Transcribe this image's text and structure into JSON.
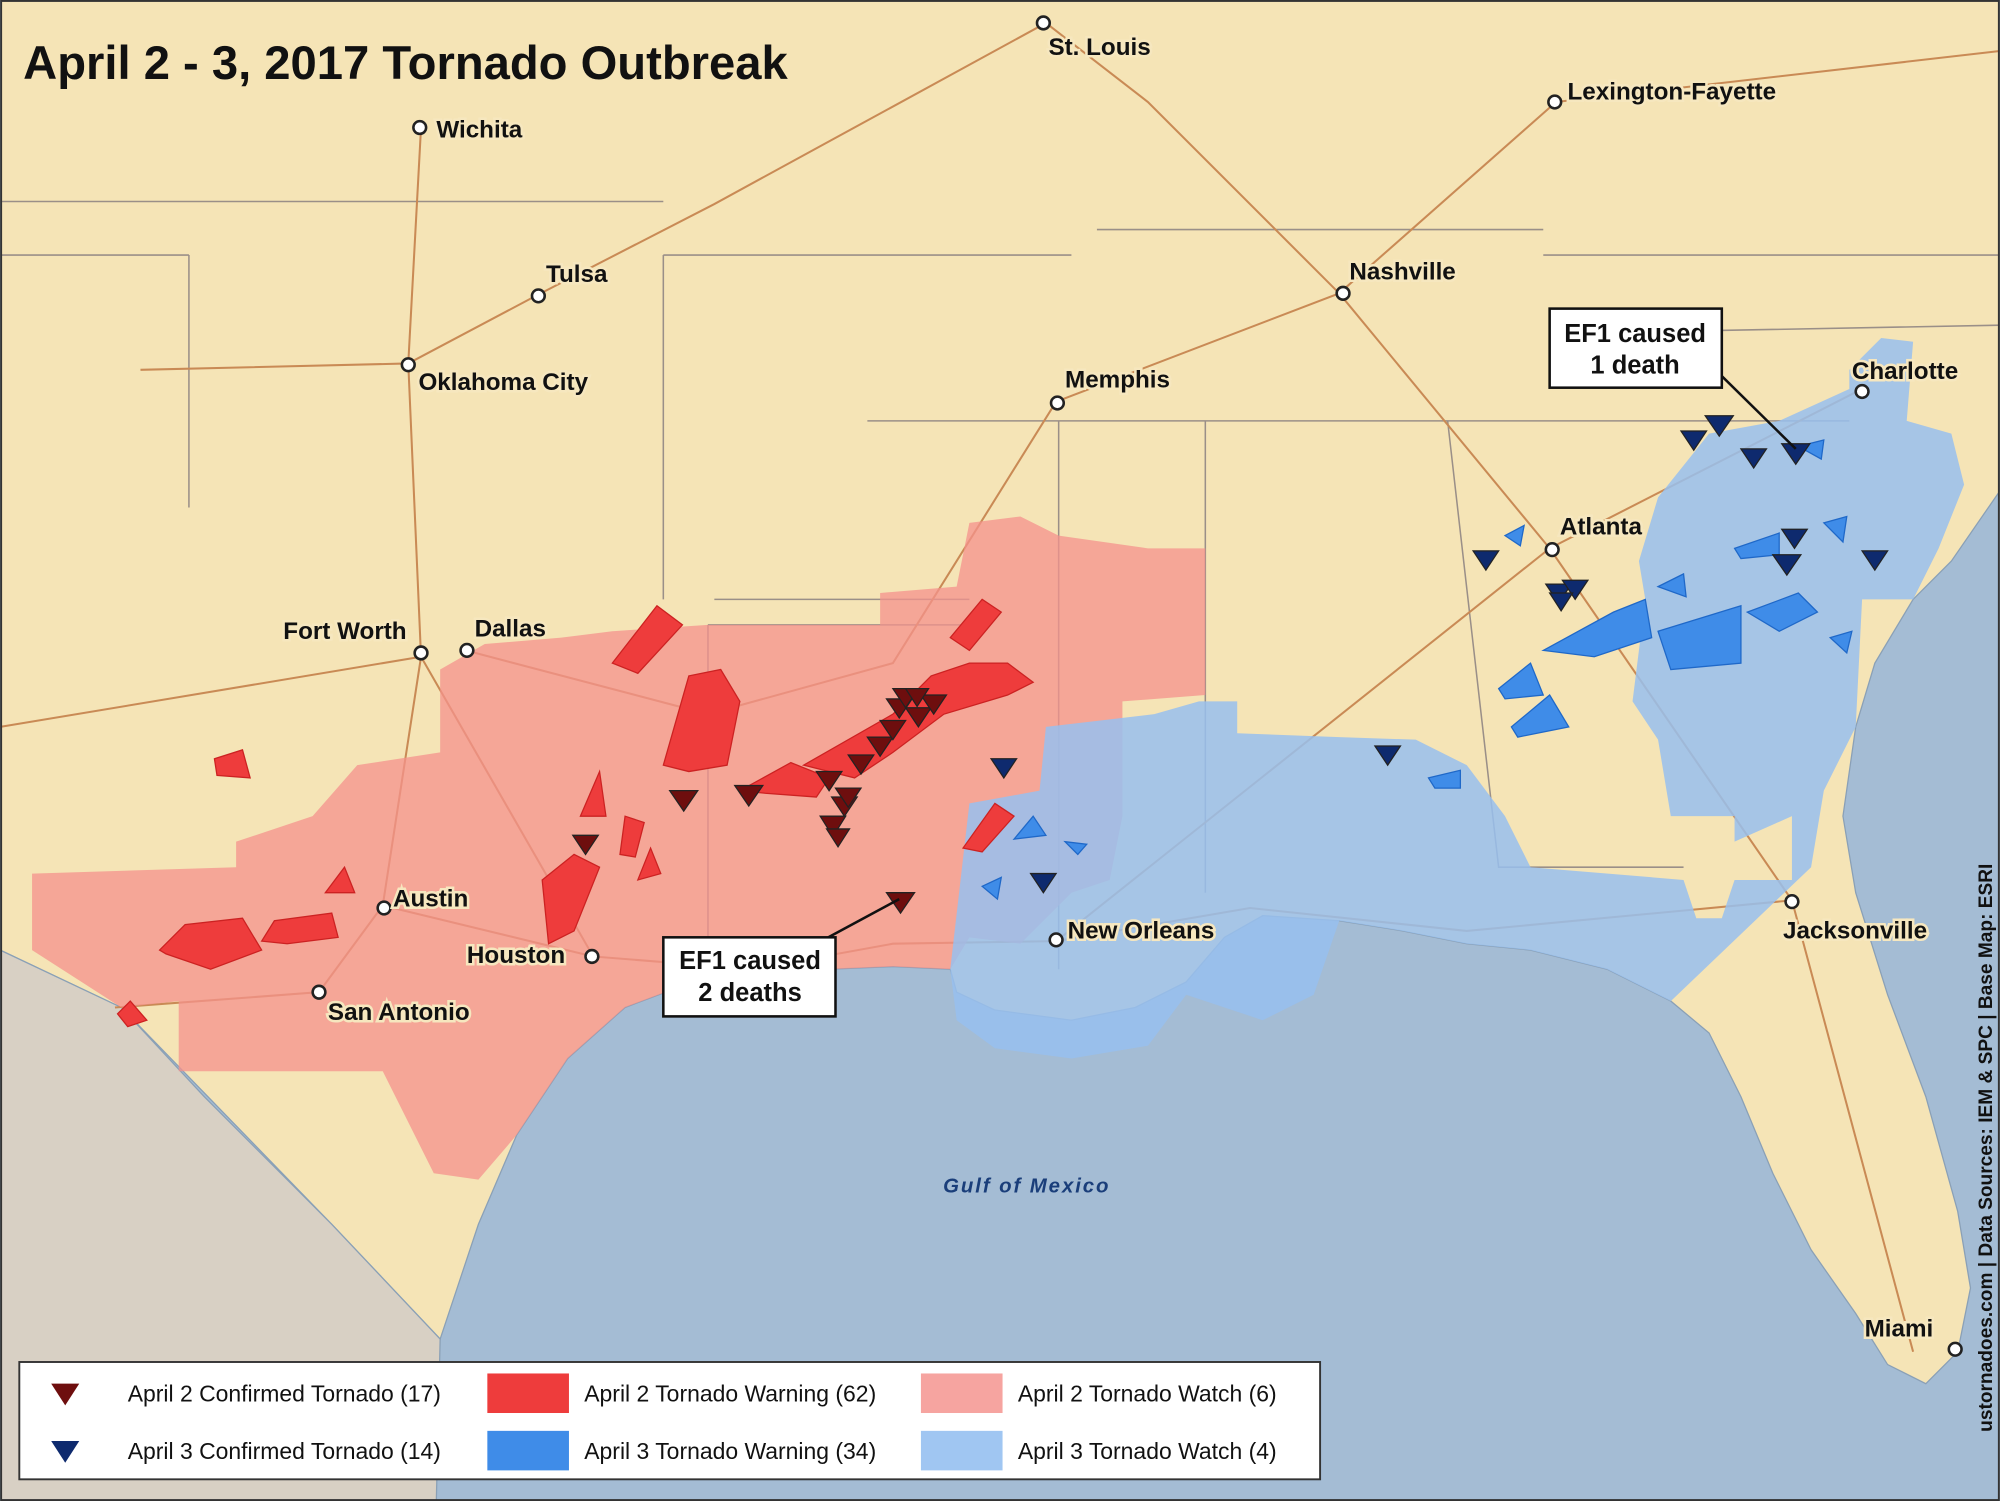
{
  "title": "April 2 - 3, 2017 Tornado Outbreak",
  "cities": [
    {
      "name": "St. Louis"
    },
    {
      "name": "Lexington-Fayette"
    },
    {
      "name": "Wichita"
    },
    {
      "name": "Tulsa"
    },
    {
      "name": "Nashville"
    },
    {
      "name": "Oklahoma City"
    },
    {
      "name": "Memphis"
    },
    {
      "name": "Charlotte"
    },
    {
      "name": "Atlanta"
    },
    {
      "name": "Fort Worth"
    },
    {
      "name": "Dallas"
    },
    {
      "name": "Austin"
    },
    {
      "name": "Houston"
    },
    {
      "name": "San Antonio"
    },
    {
      "name": "New Orleans"
    },
    {
      "name": "Jacksonville"
    },
    {
      "name": "Miami"
    }
  ],
  "annotations": [
    {
      "lines": [
        "EF1 caused",
        "1 death"
      ]
    },
    {
      "lines": [
        "EF1 caused",
        "2 deaths"
      ]
    }
  ],
  "water_label": "Gulf of Mexico",
  "credit": "ustornadoes.com | Data Sources: IEM & SPC | Base Map: ESRI",
  "legend": {
    "items": [
      "April 2 Confirmed Tornado (17)",
      "April 2 Tornado Warning (62)",
      "April 2 Tornado Watch (6)",
      "April 3 Confirmed Tornado (14)",
      "April 3 Tornado Warning (34)",
      "April 3 Tornado Watch (4)"
    ]
  }
}
